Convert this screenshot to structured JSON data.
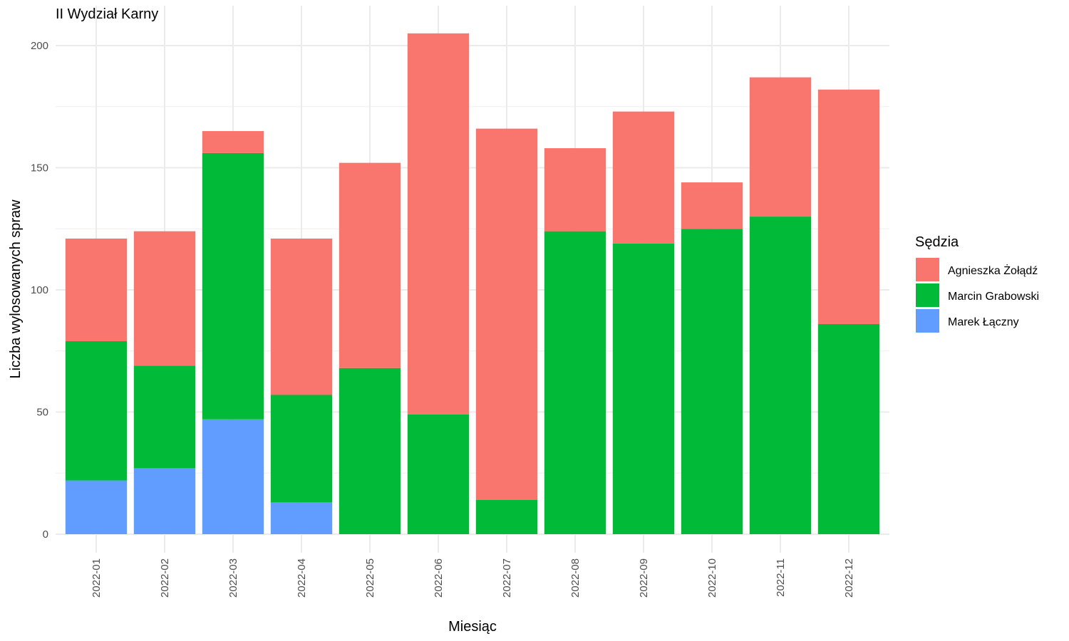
{
  "chart_data": {
    "type": "bar",
    "stacked": true,
    "title": "II Wydział Karny",
    "xlabel": "Miesiąc",
    "ylabel": "Liczba wylosowanych spraw",
    "ylim": [
      0,
      215
    ],
    "yticks": [
      0,
      50,
      100,
      150,
      200
    ],
    "grid": true,
    "legend_title": "Sędzia",
    "legend_position": "right",
    "categories": [
      "2022-01",
      "2022-02",
      "2022-03",
      "2022-04",
      "2022-05",
      "2022-06",
      "2022-07",
      "2022-08",
      "2022-09",
      "2022-10",
      "2022-11",
      "2022-12"
    ],
    "series": [
      {
        "name": "Marek Łączny",
        "color": "#619CFF",
        "values": [
          22,
          27,
          47,
          13,
          0,
          0,
          0,
          0,
          0,
          0,
          0,
          0
        ]
      },
      {
        "name": "Marcin Grabowski",
        "color": "#00BA38",
        "values": [
          57,
          42,
          109,
          44,
          68,
          49,
          14,
          124,
          119,
          125,
          130,
          86
        ]
      },
      {
        "name": "Agnieszka Żołądź",
        "color": "#F8766D",
        "values": [
          42,
          55,
          9,
          64,
          84,
          156,
          152,
          34,
          54,
          19,
          57,
          96
        ]
      }
    ],
    "legend_order": [
      "Agnieszka Żołądź",
      "Marcin Grabowski",
      "Marek Łączny"
    ]
  }
}
